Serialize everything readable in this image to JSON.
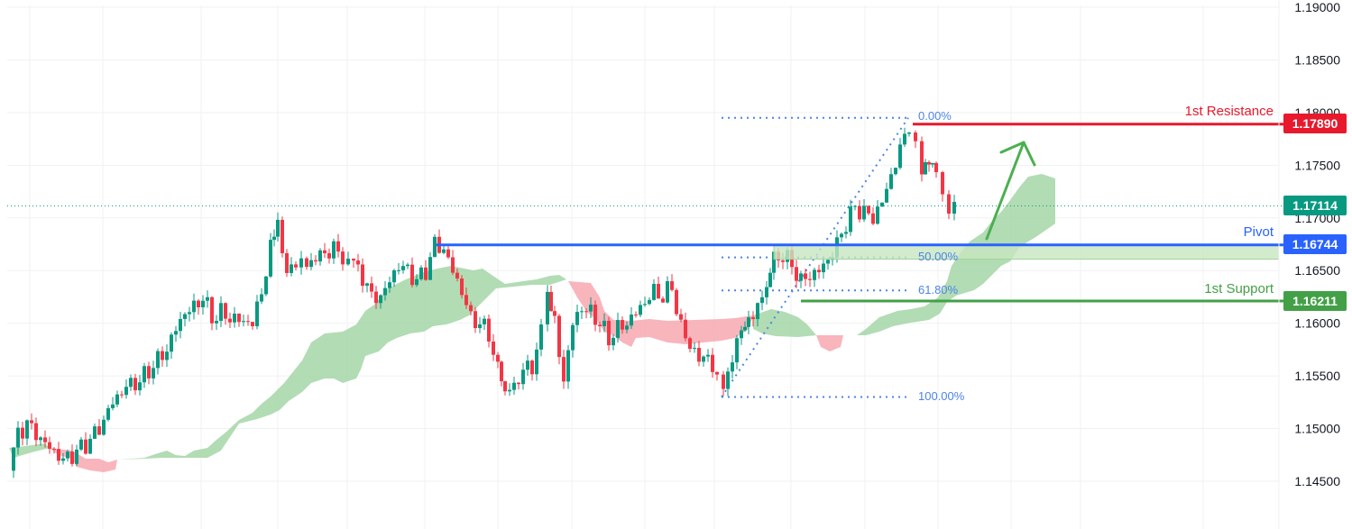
{
  "chart_data": {
    "type": "candlestick",
    "instrument_hint": "EUR/USD-like FX pair",
    "title": "",
    "xlabel": "",
    "ylabel": "",
    "ylim": [
      1.142,
      1.1905
    ],
    "grid": true,
    "price_axis": {
      "ticks": [
        "1.19000",
        "1.18500",
        "1.18000",
        "1.17500",
        "1.17000",
        "1.16500",
        "1.16000",
        "1.15500",
        "1.15000",
        "1.14500"
      ],
      "tick_values": [
        1.19,
        1.185,
        1.18,
        1.175,
        1.17,
        1.165,
        1.16,
        1.155,
        1.15,
        1.145
      ]
    },
    "current_price": {
      "label": "1.17114",
      "value": 1.17114,
      "color": "#089981"
    },
    "levels": [
      {
        "name": "1st Resistance",
        "label": "1.17890",
        "value": 1.1789,
        "color": "#e8192c"
      },
      {
        "name": "Pivot",
        "label": "1.16744",
        "value": 1.16744,
        "color": "#2962ff"
      },
      {
        "name": "1st Support",
        "label": "1.16211",
        "value": 1.16211,
        "color": "#43a047"
      }
    ],
    "fibonacci": {
      "high": 1.1795,
      "low": 1.153,
      "levels": [
        {
          "label": "0.00%",
          "value": 1.1795
        },
        {
          "label": "50.00%",
          "value": 1.16625
        },
        {
          "label": "61.80%",
          "value": 1.16312
        },
        {
          "label": "100.00%",
          "value": 1.153
        }
      ],
      "color": "#4c84e8"
    },
    "annotations": [
      {
        "type": "arrow",
        "direction": "up",
        "color": "#4caf50",
        "from_price": 1.1677,
        "to_price": 1.1771
      },
      {
        "type": "zone",
        "label": "pivot zone",
        "from": 1.16625,
        "to": 1.16744,
        "color": "#c8e6c0"
      }
    ],
    "indicators": [
      "Ichimoku Cloud"
    ],
    "candle_colors": {
      "up": "#089981",
      "down": "#f23645"
    },
    "cloud_colors": {
      "bullish": "#a5d6a7",
      "bearish": "#f7a8b0"
    },
    "series_summary": [
      {
        "segment": "start",
        "approx_price": 1.1465
      },
      {
        "segment": "rally high",
        "approx_price": 1.169
      },
      {
        "segment": "consolidation",
        "approx_price": 1.166
      },
      {
        "segment": "swing high",
        "approx_price": 1.1675
      },
      {
        "segment": "dip low",
        "approx_price": 1.153
      },
      {
        "segment": "range",
        "approx_price": 1.16
      },
      {
        "segment": "low (fib 100%)",
        "approx_price": 1.153
      },
      {
        "segment": "peak (fib 0%)",
        "approx_price": 1.1795
      },
      {
        "segment": "latest",
        "approx_price": 1.17114
      }
    ]
  }
}
